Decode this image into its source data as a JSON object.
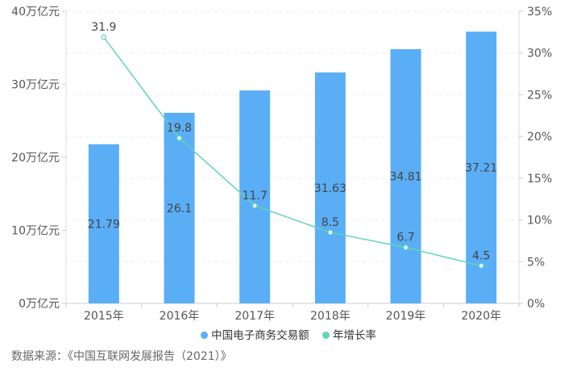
{
  "chart_data": {
    "type": "bar+line",
    "categories": [
      "2015年",
      "2016年",
      "2017年",
      "2018年",
      "2019年",
      "2020年"
    ],
    "series": [
      {
        "name": "中国电子商务交易额",
        "type": "bar",
        "axis": "left",
        "values": [
          21.79,
          26.1,
          29.16,
          31.63,
          34.81,
          37.21
        ],
        "labels": [
          "21.79",
          "26.1",
          "",
          "31.63",
          "34.81",
          "37.21"
        ],
        "color": "#5aaef6"
      },
      {
        "name": "年增长率",
        "type": "line",
        "axis": "right",
        "values": [
          31.9,
          19.8,
          11.7,
          8.5,
          6.7,
          4.5
        ],
        "labels": [
          "31.9",
          "19.8",
          "11.7",
          "8.5",
          "6.7",
          "4.5"
        ],
        "color": "#5fd6b0"
      }
    ],
    "y_left": {
      "ticks": [
        "0万亿元",
        "10万亿元",
        "20万亿元",
        "30万亿元",
        "40万亿元"
      ],
      "ylim": [
        0,
        40
      ]
    },
    "y_right": {
      "ticks": [
        "0%",
        "5%",
        "10%",
        "15%",
        "20%",
        "25%",
        "30%",
        "35%"
      ],
      "ylim": [
        0,
        35
      ]
    },
    "legend_position": "bottom-center",
    "grid": true
  },
  "source_note": "数据来源：《中国互联网发展报告（2021）》"
}
